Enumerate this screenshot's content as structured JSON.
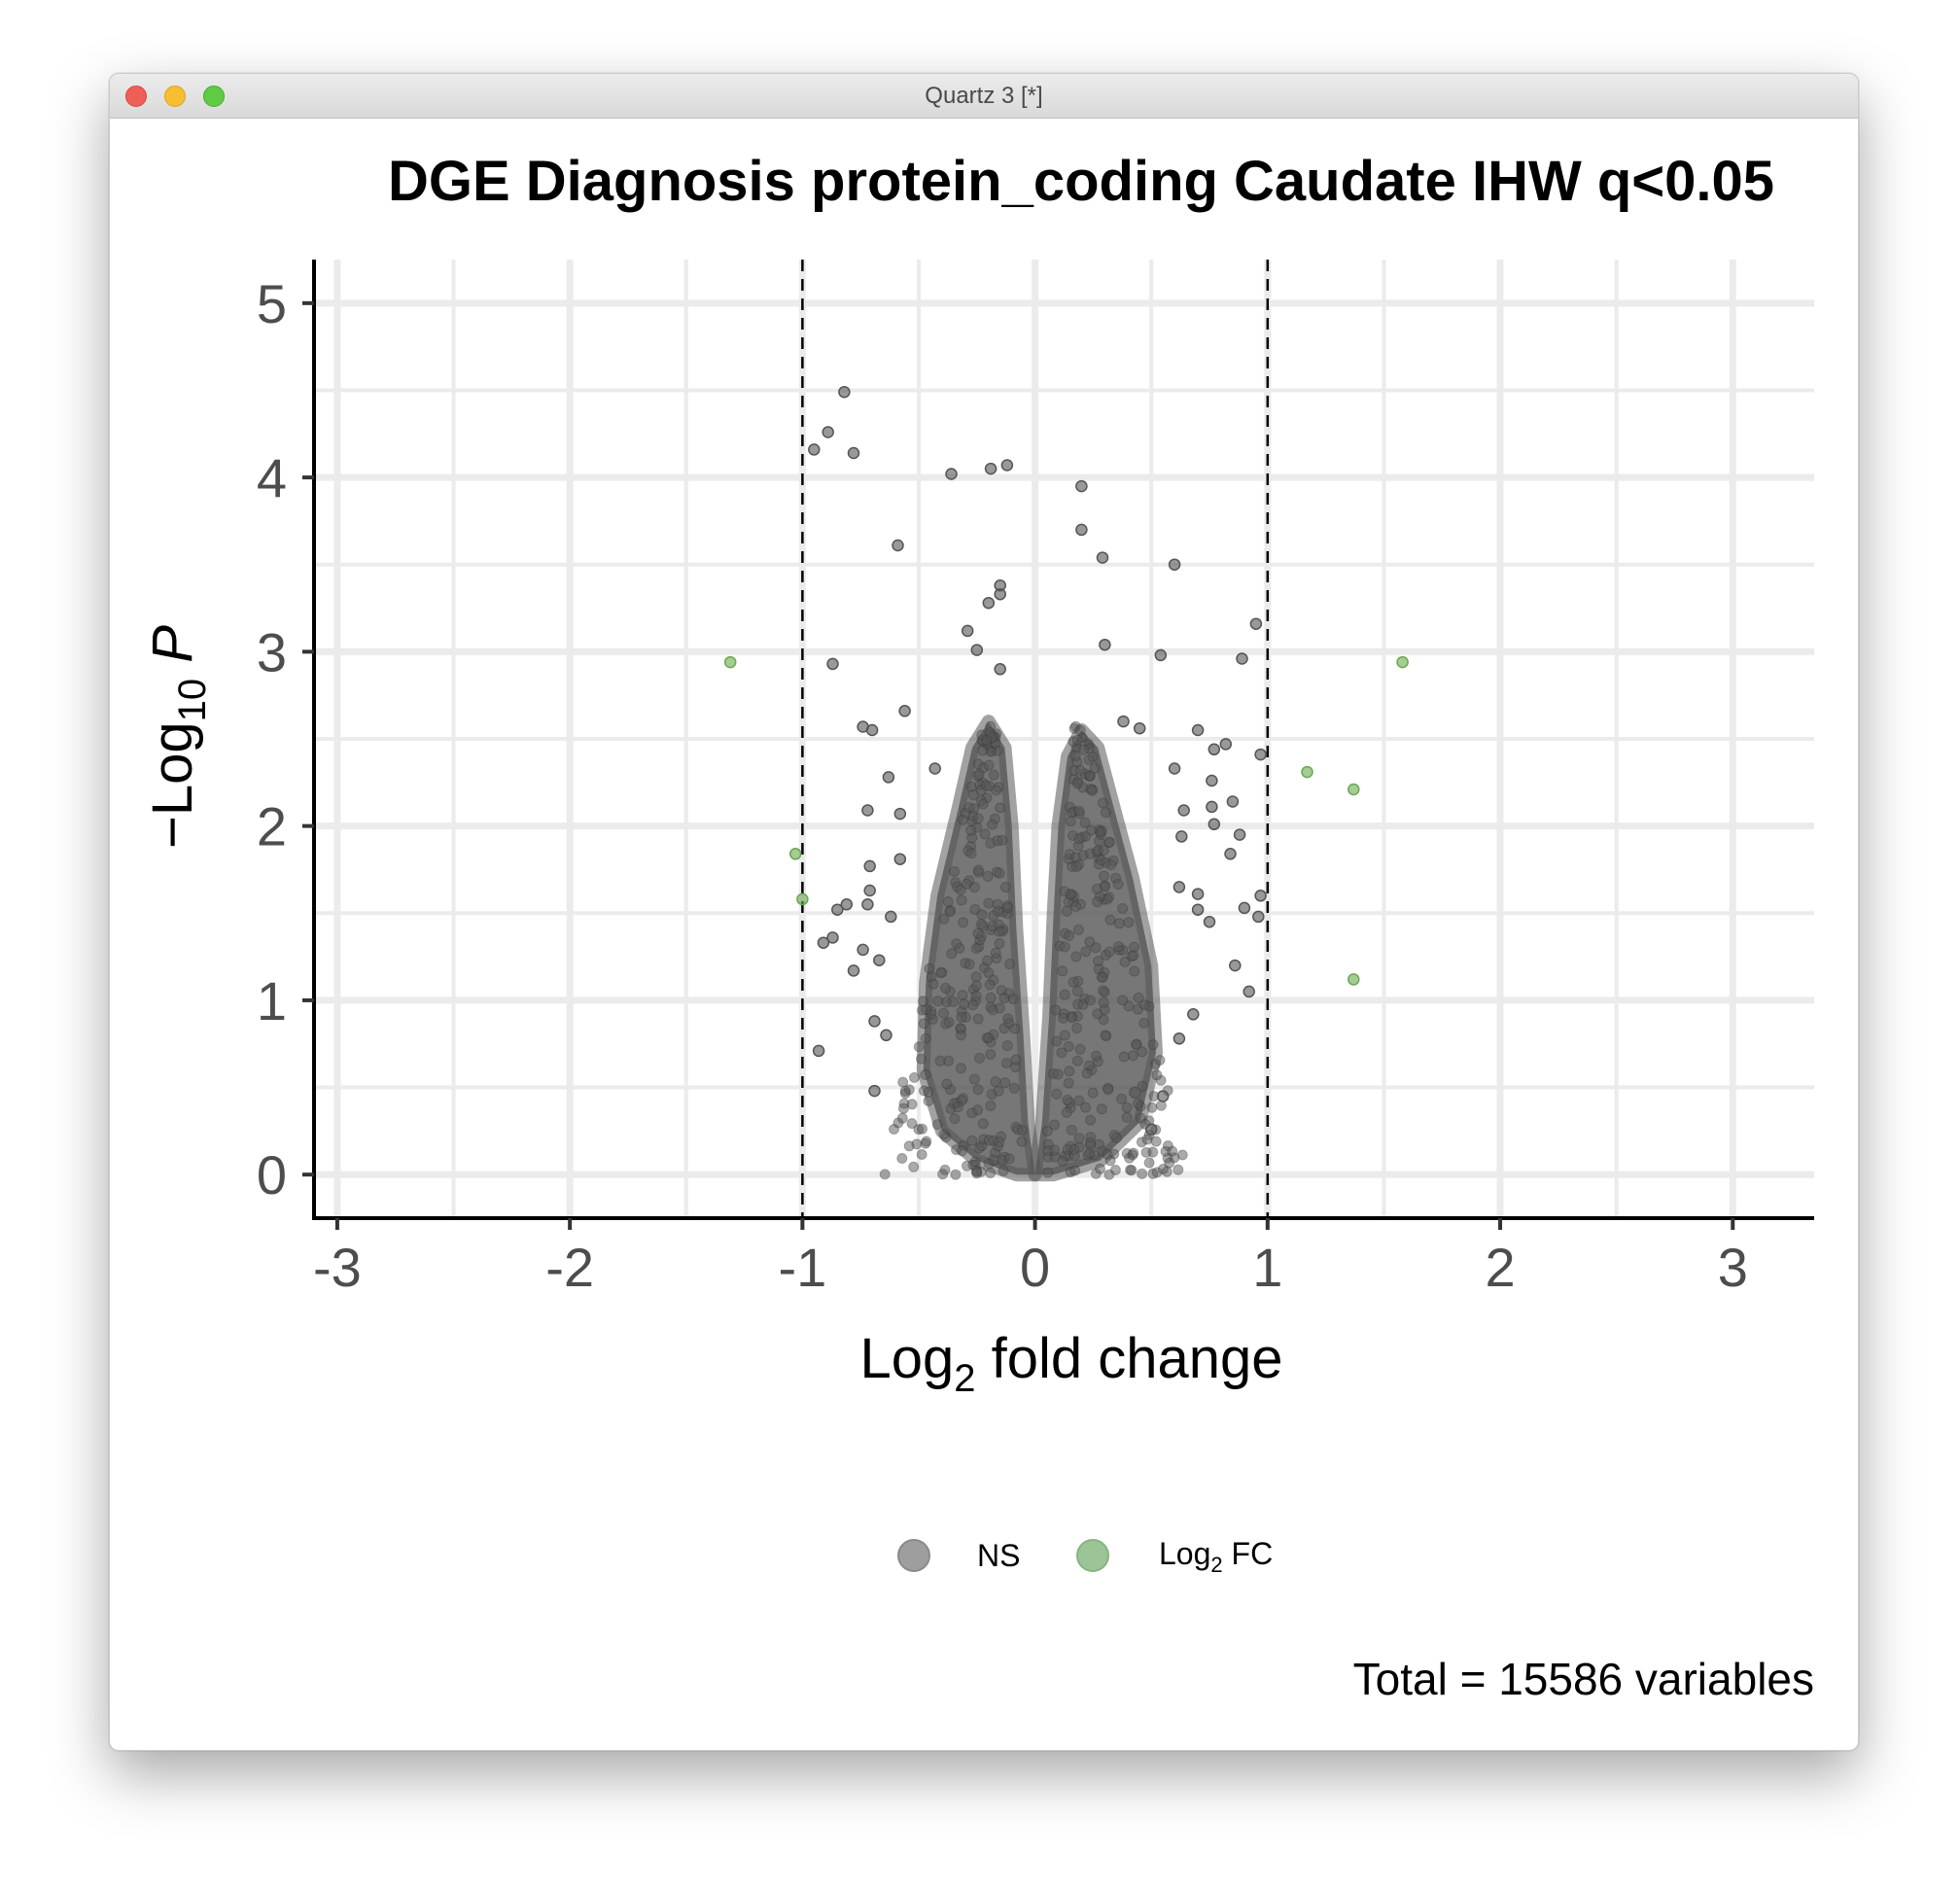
{
  "window": {
    "title": "Quartz 3 [*]"
  },
  "chart_data": {
    "type": "scatter",
    "subtype": "volcano",
    "title": "DGE Diagnosis protein_coding Caudate IHW q<0.05",
    "xlabel": "Log2 fold change",
    "ylabel": "-Log10 P",
    "xlim": [
      -3.1,
      3.35
    ],
    "ylim": [
      -0.25,
      5.25
    ],
    "x_ticks": [
      "-3",
      "-2",
      "-1",
      "0",
      "1",
      "2",
      "3"
    ],
    "y_ticks": [
      "0",
      "1",
      "2",
      "3",
      "4",
      "5"
    ],
    "grid": true,
    "fold_change_cutoffs": [
      -1,
      1
    ],
    "caption": "Total = 15586 variables",
    "legend_position": "bottom",
    "colors": {
      "NS": "#555555",
      "Log2 FC": "#6aa84f"
    },
    "legend": [
      {
        "label": "NS",
        "color": "#9e9e9e"
      },
      {
        "label": "Log2 FC",
        "color": "#9cc597"
      }
    ],
    "series": [
      {
        "name": "NS",
        "points": [
          [
            -0.82,
            4.49
          ],
          [
            -0.89,
            4.26
          ],
          [
            -0.95,
            4.16
          ],
          [
            -0.78,
            4.14
          ],
          [
            -0.36,
            4.02
          ],
          [
            -0.19,
            4.05
          ],
          [
            -0.12,
            4.07
          ],
          [
            0.2,
            3.95
          ],
          [
            0.2,
            3.7
          ],
          [
            0.29,
            3.54
          ],
          [
            0.6,
            3.5
          ],
          [
            -0.59,
            3.61
          ],
          [
            -0.15,
            3.38
          ],
          [
            -0.15,
            3.33
          ],
          [
            -0.2,
            3.28
          ],
          [
            -0.29,
            3.12
          ],
          [
            -0.25,
            3.01
          ],
          [
            0.3,
            3.04
          ],
          [
            0.95,
            3.16
          ],
          [
            0.89,
            2.96
          ],
          [
            0.54,
            2.98
          ],
          [
            -0.87,
            2.93
          ],
          [
            -0.15,
            2.9
          ],
          [
            -0.74,
            2.57
          ],
          [
            -0.7,
            2.55
          ],
          [
            -0.56,
            2.66
          ],
          [
            0.7,
            2.55
          ],
          [
            0.97,
            2.41
          ],
          [
            0.77,
            2.44
          ],
          [
            0.82,
            2.47
          ],
          [
            0.6,
            2.33
          ],
          [
            0.76,
            2.26
          ],
          [
            0.45,
            2.56
          ],
          [
            0.38,
            2.6
          ],
          [
            -0.43,
            2.33
          ],
          [
            -0.63,
            2.28
          ],
          [
            -0.72,
            2.09
          ],
          [
            -0.58,
            2.07
          ],
          [
            0.76,
            2.11
          ],
          [
            0.85,
            2.14
          ],
          [
            0.64,
            2.09
          ],
          [
            0.77,
            2.01
          ],
          [
            0.88,
            1.95
          ],
          [
            0.63,
            1.94
          ],
          [
            0.84,
            1.84
          ],
          [
            0.97,
            1.6
          ],
          [
            0.96,
            1.48
          ],
          [
            0.9,
            1.53
          ],
          [
            0.75,
            1.45
          ],
          [
            0.86,
            1.2
          ],
          [
            0.92,
            1.05
          ],
          [
            0.7,
            1.61
          ],
          [
            0.7,
            1.52
          ],
          [
            0.62,
            1.65
          ],
          [
            -0.58,
            1.81
          ],
          [
            -0.71,
            1.77
          ],
          [
            -0.71,
            1.63
          ],
          [
            -0.72,
            1.55
          ],
          [
            -0.81,
            1.55
          ],
          [
            -0.85,
            1.52
          ],
          [
            -0.62,
            1.48
          ],
          [
            -0.87,
            1.36
          ],
          [
            -0.91,
            1.33
          ],
          [
            -0.74,
            1.29
          ],
          [
            -0.67,
            1.23
          ],
          [
            -0.78,
            1.17
          ],
          [
            -0.93,
            0.71
          ],
          [
            -0.69,
            0.48
          ],
          [
            -0.64,
            0.8
          ],
          [
            -0.69,
            0.88
          ],
          [
            0.5,
            0.26
          ],
          [
            0.55,
            0.45
          ],
          [
            0.43,
            0.47
          ],
          [
            0.62,
            0.78
          ],
          [
            0.68,
            0.92
          ]
        ]
      },
      {
        "name": "Log2 FC",
        "points": [
          [
            -1.31,
            2.94
          ],
          [
            -1.03,
            1.84
          ],
          [
            -1.0,
            1.58
          ],
          [
            1.58,
            2.94
          ],
          [
            1.17,
            2.31
          ],
          [
            1.37,
            2.21
          ],
          [
            1.37,
            1.12
          ]
        ]
      }
    ]
  }
}
